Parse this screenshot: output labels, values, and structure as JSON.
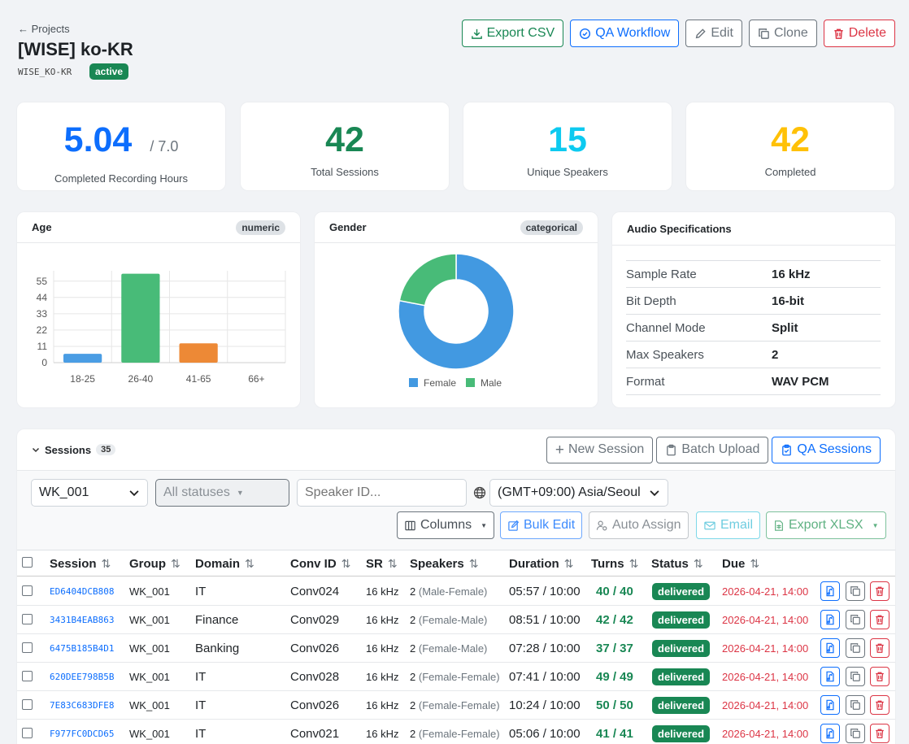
{
  "header": {
    "back_label": "Projects",
    "title": "[WISE] ko-KR",
    "code": "WISE_KO-KR",
    "status": "active"
  },
  "actions": {
    "export_csv": "Export CSV",
    "qa_workflow": "QA Workflow",
    "edit": "Edit",
    "clone": "Clone",
    "delete": "Delete"
  },
  "stats": [
    {
      "value": "5.04",
      "sub": "/ 7.0",
      "label": "Completed Recording Hours",
      "color": "#0d6efd"
    },
    {
      "value": "42",
      "sub": "",
      "label": "Total Sessions",
      "color": "#198754"
    },
    {
      "value": "15",
      "sub": "",
      "label": "Unique Speakers",
      "color": "#0dcaf0"
    },
    {
      "value": "42",
      "sub": "",
      "label": "Completed",
      "color": "#ffc107"
    }
  ],
  "age_card": {
    "title": "Age",
    "badge": "numeric"
  },
  "gender_card": {
    "title": "Gender",
    "badge": "categorical"
  },
  "audio_card": {
    "title": "Audio Specifications",
    "rows": [
      {
        "k": "Sample Rate",
        "v": "16 kHz"
      },
      {
        "k": "Bit Depth",
        "v": "16-bit"
      },
      {
        "k": "Channel Mode",
        "v": "Split"
      },
      {
        "k": "Max Speakers",
        "v": "2"
      },
      {
        "k": "Format",
        "v": "WAV PCM"
      }
    ]
  },
  "chart_data": [
    {
      "type": "bar",
      "title": "Age",
      "categories": [
        "18-25",
        "26-40",
        "41-65",
        "66+"
      ],
      "values": [
        6,
        60,
        13,
        0
      ],
      "colors": [
        "#4a9de4",
        "#48bb78",
        "#ed8936",
        "#9f7aea"
      ],
      "yticks": [
        0,
        11,
        22,
        33,
        44,
        55
      ],
      "ylim": [
        0,
        62
      ]
    },
    {
      "type": "pie",
      "title": "Gender",
      "categories": [
        "Female",
        "Male"
      ],
      "values": [
        78,
        22
      ],
      "colors": [
        "#4299e1",
        "#48bb78"
      ]
    }
  ],
  "sessions": {
    "title": "Sessions",
    "count": "35",
    "new_session": "New Session",
    "batch_upload": "Batch Upload",
    "qa_sessions": "QA Sessions",
    "filters": {
      "group": "WK_001",
      "status": "All statuses",
      "speaker_placeholder": "Speaker ID...",
      "timezone": "(GMT+09:00) Asia/Seoul"
    },
    "toolbar": {
      "columns": "Columns",
      "bulk_edit": "Bulk Edit",
      "auto_assign": "Auto Assign",
      "email": "Email",
      "export_xlsx": "Export XLSX"
    },
    "columns": [
      "Session",
      "Group",
      "Domain",
      "Conv ID",
      "SR",
      "Speakers",
      "Duration",
      "Turns",
      "Status",
      "Due"
    ],
    "rows": [
      {
        "id": "ED6404DCB808",
        "group": "WK_001",
        "domain": "IT",
        "conv": "Conv024",
        "sr": "16 kHz",
        "spk_n": "2",
        "spk": "(Male-Female)",
        "duration": "05:57 / 10:00",
        "turns": "40 / 40",
        "status": "delivered",
        "due": "2026-04-21, 14:00"
      },
      {
        "id": "3431B4EAB863",
        "group": "WK_001",
        "domain": "Finance",
        "conv": "Conv029",
        "sr": "16 kHz",
        "spk_n": "2",
        "spk": "(Female-Male)",
        "duration": "08:51 / 10:00",
        "turns": "42 / 42",
        "status": "delivered",
        "due": "2026-04-21, 14:00"
      },
      {
        "id": "6475B185B4D1",
        "group": "WK_001",
        "domain": "Banking",
        "conv": "Conv026",
        "sr": "16 kHz",
        "spk_n": "2",
        "spk": "(Female-Male)",
        "duration": "07:28 / 10:00",
        "turns": "37 / 37",
        "status": "delivered",
        "due": "2026-04-21, 14:00"
      },
      {
        "id": "620DEE798B5B",
        "group": "WK_001",
        "domain": "IT",
        "conv": "Conv028",
        "sr": "16 kHz",
        "spk_n": "2",
        "spk": "(Female-Female)",
        "duration": "07:41 / 10:00",
        "turns": "49 / 49",
        "status": "delivered",
        "due": "2026-04-21, 14:00"
      },
      {
        "id": "7E83C683DFE8",
        "group": "WK_001",
        "domain": "IT",
        "conv": "Conv026",
        "sr": "16 kHz",
        "spk_n": "2",
        "spk": "(Female-Female)",
        "duration": "10:24 / 10:00",
        "turns": "50 / 50",
        "status": "delivered",
        "due": "2026-04-21, 14:00"
      },
      {
        "id": "F977FC0DCD65",
        "group": "WK_001",
        "domain": "IT",
        "conv": "Conv021",
        "sr": "16 kHz",
        "spk_n": "2",
        "spk": "(Female-Female)",
        "duration": "05:06 / 10:00",
        "turns": "41 / 41",
        "status": "delivered",
        "due": "2026-04-21, 14:00"
      }
    ]
  }
}
